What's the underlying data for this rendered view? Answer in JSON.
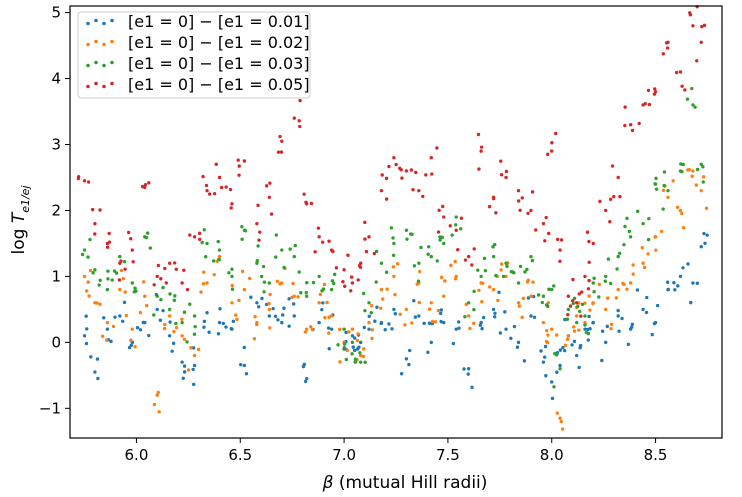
{
  "chart_data": {
    "type": "scatter",
    "xlabel_symbol": "β",
    "xlabel_text": " (mutual Hill radii)",
    "ylabel_prefix": "log ",
    "ylabel_symbol": "T",
    "ylabel_subscript": "e1/ej",
    "xlim": [
      5.68,
      8.82
    ],
    "ylim": [
      -1.45,
      5.1
    ],
    "x_ticks": [
      6.0,
      6.5,
      7.0,
      7.5,
      8.0,
      8.5
    ],
    "x_tick_labels": [
      "6.0",
      "6.5",
      "7.0",
      "7.5",
      "8.0",
      "8.5"
    ],
    "y_ticks": [
      -1,
      0,
      1,
      2,
      3,
      4,
      5
    ],
    "y_tick_labels": [
      "−1",
      "0",
      "1",
      "2",
      "3",
      "4",
      "5"
    ],
    "grid": false,
    "legend_position": "top-left",
    "series": [
      {
        "name": "[e1 = 0] − [e1 = 0.01]",
        "color": "#1f77b4",
        "x": [
          5.75,
          5.8,
          5.86,
          5.92,
          5.98,
          6.04,
          6.1,
          6.16,
          6.22,
          6.28,
          6.34,
          6.4,
          6.46,
          6.52,
          6.58,
          6.64,
          6.7,
          6.76,
          6.82,
          6.88,
          6.94,
          7.0,
          7.04,
          7.08,
          7.12,
          7.18,
          7.24,
          7.3,
          7.36,
          7.42,
          7.48,
          7.54,
          7.6,
          7.66,
          7.72,
          7.78,
          7.84,
          7.9,
          7.96,
          8.0,
          8.04,
          8.08,
          8.12,
          8.16,
          8.2,
          8.26,
          8.32,
          8.38,
          8.44,
          8.5,
          8.56,
          8.62,
          8.68,
          8.72
        ],
        "y": [
          0.1,
          -0.45,
          0.2,
          0.4,
          0.0,
          0.3,
          0.5,
          0.1,
          -0.3,
          -0.35,
          0.45,
          0.3,
          0.2,
          -0.35,
          0.6,
          0.4,
          0.3,
          0.4,
          -0.55,
          0.3,
          0.2,
          -0.1,
          0.1,
          0.0,
          0.2,
          0.3,
          0.5,
          -0.25,
          0.4,
          0.0,
          0.3,
          0.2,
          -0.4,
          0.3,
          0.5,
          0.2,
          0.0,
          0.4,
          -0.3,
          -0.6,
          -0.35,
          0.1,
          -0.2,
          0.2,
          0.3,
          0.0,
          0.4,
          0.2,
          0.5,
          0.3,
          0.8,
          1.0,
          0.9,
          1.45
        ]
      },
      {
        "name": "[e1 = 0] − [e1 = 0.02]",
        "color": "#ff7f0e",
        "x": [
          5.75,
          5.8,
          5.86,
          5.92,
          5.98,
          6.04,
          6.1,
          6.16,
          6.22,
          6.28,
          6.34,
          6.4,
          6.46,
          6.52,
          6.58,
          6.64,
          6.7,
          6.76,
          6.82,
          6.88,
          6.94,
          7.0,
          7.04,
          7.08,
          7.12,
          7.18,
          7.24,
          7.3,
          7.36,
          7.42,
          7.48,
          7.54,
          7.6,
          7.66,
          7.72,
          7.78,
          7.84,
          7.9,
          7.96,
          8.0,
          8.04,
          8.08,
          8.12,
          8.16,
          8.2,
          8.26,
          8.32,
          8.38,
          8.44,
          8.5,
          8.56,
          8.62,
          8.68,
          8.72
        ],
        "y": [
          1.0,
          0.6,
          0.3,
          0.8,
          0.2,
          0.7,
          -0.8,
          0.4,
          0.1,
          -0.2,
          0.9,
          1.3,
          0.6,
          0.8,
          0.3,
          0.5,
          0.9,
          0.7,
          0.2,
          0.6,
          0.4,
          0.0,
          0.2,
          -0.2,
          0.3,
          0.8,
          1.0,
          0.5,
          0.9,
          0.6,
          0.7,
          1.0,
          0.4,
          0.9,
          0.8,
          1.0,
          0.6,
          0.7,
          0.3,
          0.2,
          -1.15,
          0.1,
          0.4,
          0.3,
          0.6,
          0.5,
          0.8,
          0.9,
          1.2,
          1.6,
          2.2,
          2.0,
          2.6,
          2.3
        ]
      },
      {
        "name": "[e1 = 0] − [e1 = 0.03]",
        "color": "#2ca02c",
        "x": [
          5.75,
          5.8,
          5.86,
          5.92,
          5.98,
          6.04,
          6.1,
          6.16,
          6.22,
          6.28,
          6.34,
          6.4,
          6.46,
          6.52,
          6.58,
          6.64,
          6.7,
          6.76,
          6.82,
          6.88,
          6.94,
          7.0,
          7.04,
          7.08,
          7.12,
          7.18,
          7.24,
          7.3,
          7.36,
          7.42,
          7.48,
          7.54,
          7.6,
          7.66,
          7.72,
          7.78,
          7.84,
          7.9,
          7.96,
          8.0,
          8.04,
          8.08,
          8.12,
          8.16,
          8.2,
          8.26,
          8.32,
          8.38,
          8.44,
          8.5,
          8.56,
          8.62,
          8.68,
          8.72
        ],
        "y": [
          1.4,
          1.1,
          0.8,
          1.3,
          0.9,
          1.6,
          0.7,
          0.5,
          0.3,
          0.4,
          1.5,
          1.4,
          1.0,
          1.7,
          1.2,
          0.9,
          1.4,
          1.3,
          0.7,
          1.0,
          0.8,
          0.2,
          0.0,
          -0.3,
          0.6,
          1.2,
          1.5,
          1.7,
          1.2,
          1.3,
          1.5,
          1.9,
          0.6,
          1.0,
          1.3,
          1.2,
          0.9,
          1.3,
          0.7,
          0.8,
          -0.4,
          0.5,
          0.3,
          0.4,
          0.9,
          1.0,
          1.3,
          1.6,
          1.8,
          2.4,
          2.3,
          2.6,
          3.6,
          2.7
        ]
      },
      {
        "name": "[e1 = 0] − [e1 = 0.05]",
        "color": "#d62728",
        "x": [
          5.75,
          5.8,
          5.86,
          5.92,
          5.98,
          6.04,
          6.1,
          6.16,
          6.22,
          6.28,
          6.34,
          6.4,
          6.46,
          6.52,
          6.58,
          6.64,
          6.7,
          6.76,
          6.82,
          6.88,
          6.94,
          7.0,
          7.04,
          7.08,
          7.12,
          7.18,
          7.24,
          7.3,
          7.36,
          7.42,
          7.48,
          7.54,
          7.6,
          7.66,
          7.72,
          7.78,
          7.84,
          7.9,
          7.96,
          8.0,
          8.04,
          8.08,
          8.12,
          8.16,
          8.2,
          8.26,
          8.32,
          8.38,
          8.44,
          8.5,
          8.56,
          8.62,
          8.68,
          8.72
        ],
        "y": [
          2.45,
          1.8,
          1.5,
          1.2,
          1.4,
          2.35,
          1.0,
          1.2,
          0.9,
          1.6,
          2.3,
          2.5,
          2.1,
          2.75,
          1.8,
          2.2,
          3.05,
          3.4,
          2.1,
          1.6,
          1.4,
          1.1,
          0.9,
          1.2,
          1.6,
          2.3,
          2.8,
          2.6,
          2.3,
          2.8,
          1.9,
          1.7,
          1.3,
          2.9,
          2.2,
          2.5,
          2.3,
          2.0,
          1.8,
          2.9,
          1.4,
          0.7,
          0.6,
          1.0,
          1.5,
          2.0,
          2.5,
          3.3,
          3.6,
          3.8,
          4.55,
          4.1,
          4.8,
          4.55
        ]
      }
    ]
  }
}
